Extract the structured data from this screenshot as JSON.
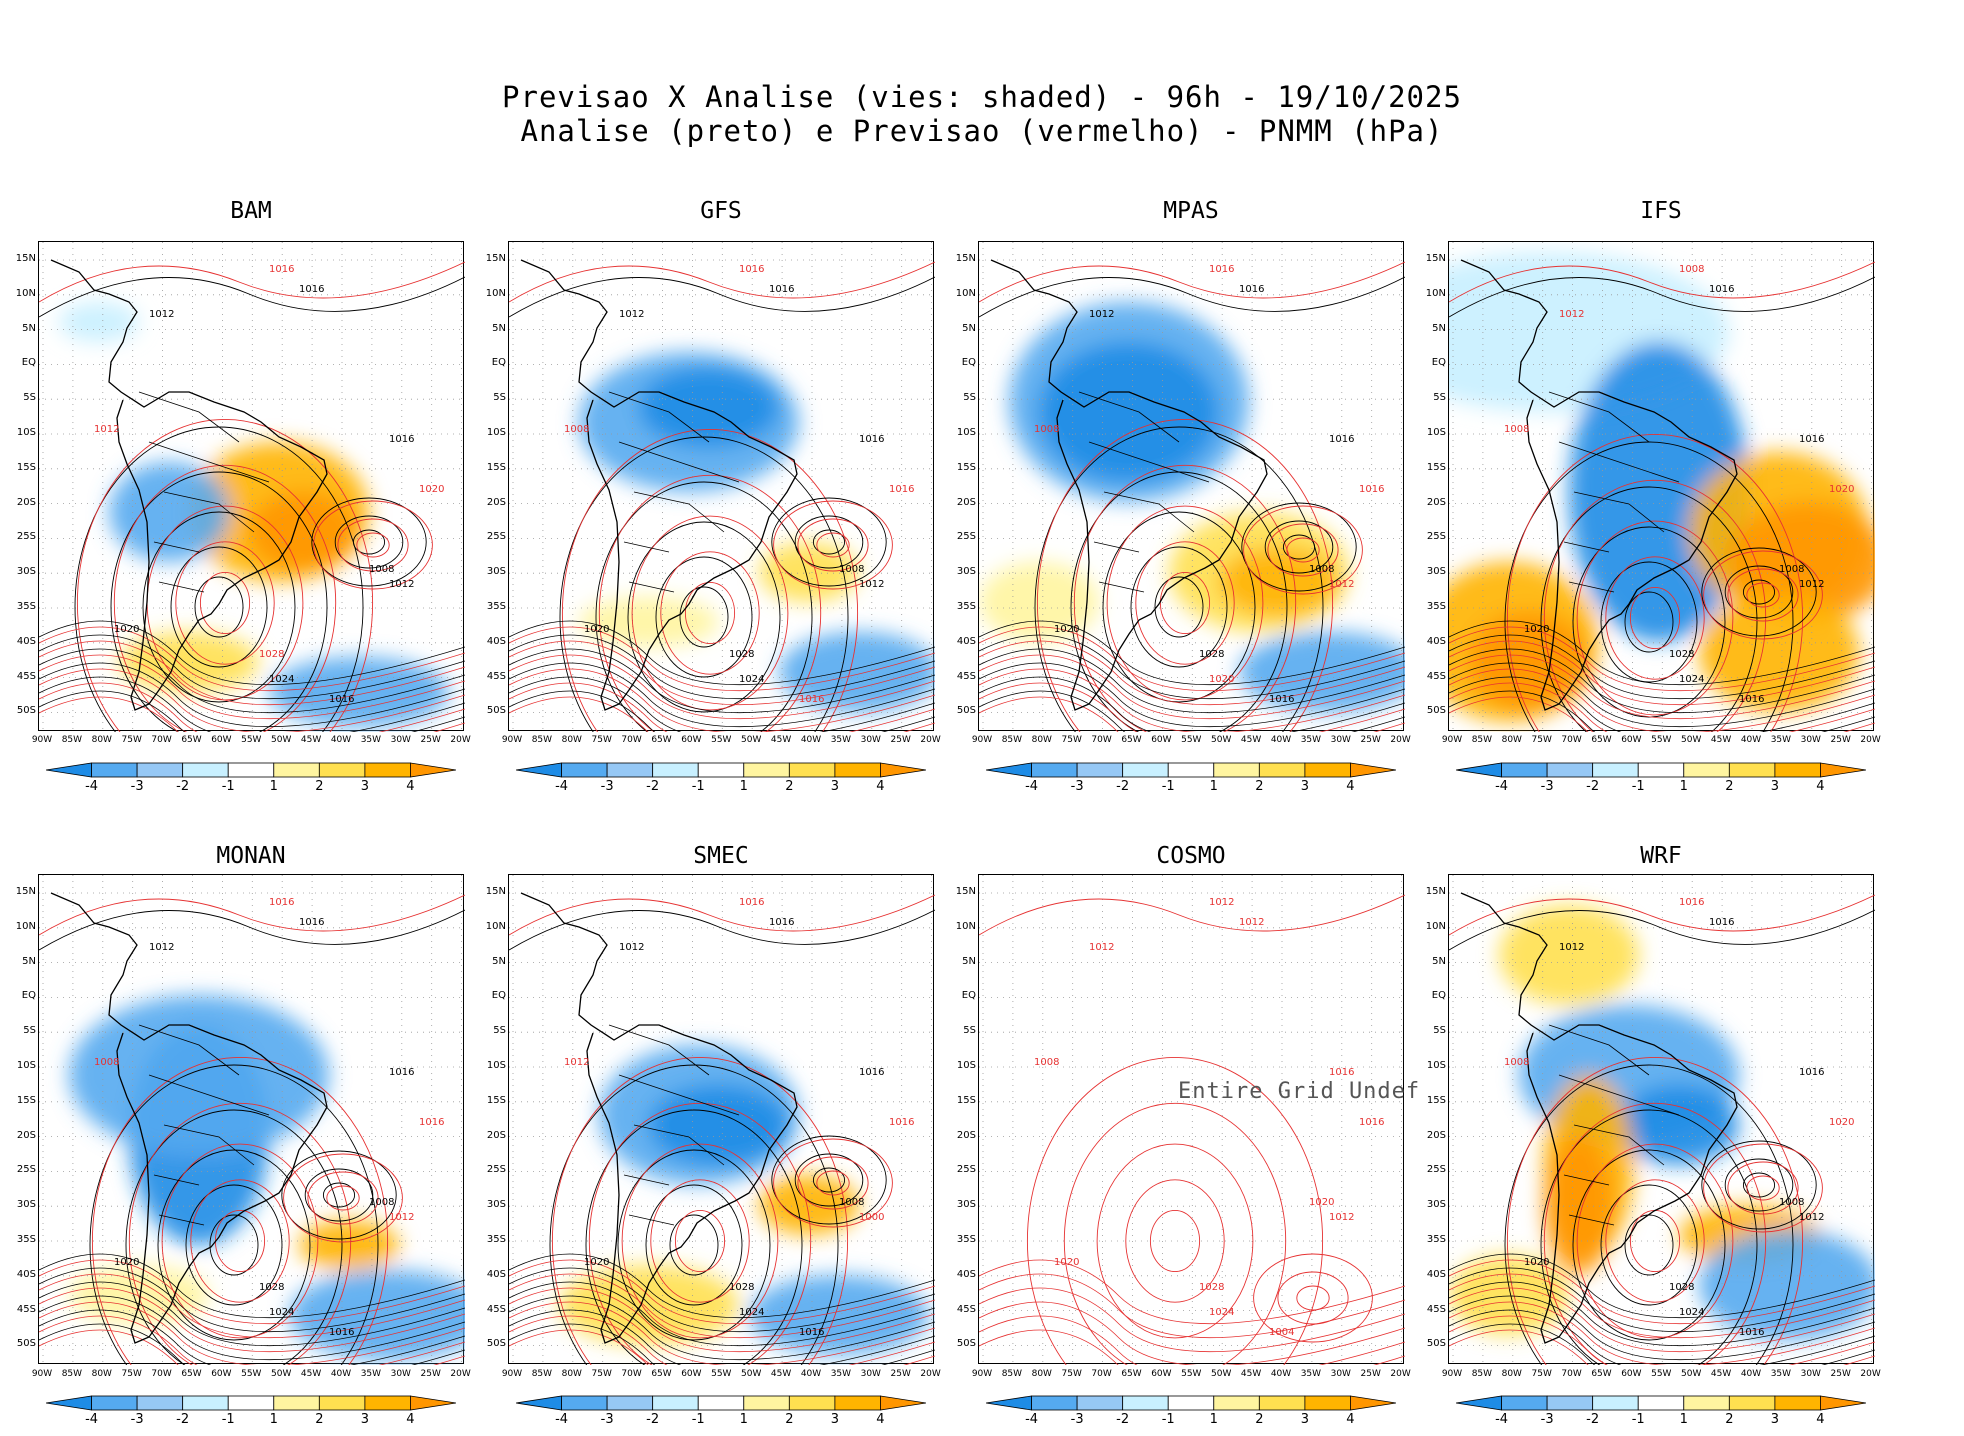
{
  "header": {
    "line1": "Previsao X Analise (vies: shaded) - 96h - 19/10/2025",
    "line2": "Analise (preto) e Previsao (vermelho) - PNMM (hPa)"
  },
  "lat_labels": [
    "15N",
    "10N",
    "5N",
    "EQ",
    "5S",
    "10S",
    "15S",
    "20S",
    "25S",
    "30S",
    "35S",
    "40S",
    "45S",
    "50S"
  ],
  "lon_labels": [
    "90W",
    "85W",
    "80W",
    "75W",
    "70W",
    "65W",
    "60W",
    "55W",
    "50W",
    "45W",
    "40W",
    "35W",
    "30W",
    "25W",
    "20W"
  ],
  "colorbar": {
    "ticks": [
      "-4",
      "-3",
      "-2",
      "-1",
      "1",
      "2",
      "3",
      "4"
    ],
    "colors": [
      "#1e8ce6",
      "#55aaf0",
      "#96c8f5",
      "#c8f0ff",
      "#ffffff",
      "#fff5a0",
      "#ffe050",
      "#ffb400",
      "#ff9600"
    ]
  },
  "colors": {
    "analysis": "#000000",
    "forecast": "#e63232",
    "positive": "#ffb400",
    "negative": "#55aaf0"
  },
  "panels": [
    {
      "name": "BAM",
      "has_data": true,
      "undef_text": "",
      "labels": [
        {
          "t": "1016",
          "c": "r"
        },
        {
          "t": "1016",
          "c": "k"
        },
        {
          "t": "1012",
          "c": "k"
        },
        {
          "t": "1012",
          "c": "r"
        },
        {
          "t": "1016",
          "c": "k"
        },
        {
          "t": "1020",
          "c": "r"
        },
        {
          "t": "1008",
          "c": "k"
        },
        {
          "t": "1012",
          "c": "k"
        },
        {
          "t": "1020",
          "c": "k"
        },
        {
          "t": "1024",
          "c": "k"
        },
        {
          "t": "1028",
          "c": "r"
        },
        {
          "t": "1016",
          "c": "k"
        }
      ]
    },
    {
      "name": "GFS",
      "has_data": true,
      "undef_text": "",
      "labels": [
        {
          "t": "1016",
          "c": "r"
        },
        {
          "t": "1016",
          "c": "k"
        },
        {
          "t": "1012",
          "c": "k"
        },
        {
          "t": "1008",
          "c": "r"
        },
        {
          "t": "1016",
          "c": "k"
        },
        {
          "t": "1016",
          "c": "r"
        },
        {
          "t": "1008",
          "c": "k"
        },
        {
          "t": "1012",
          "c": "k"
        },
        {
          "t": "1020",
          "c": "k"
        },
        {
          "t": "1024",
          "c": "k"
        },
        {
          "t": "1028",
          "c": "k"
        },
        {
          "t": "1016",
          "c": "r"
        }
      ]
    },
    {
      "name": "MPAS",
      "has_data": true,
      "undef_text": "",
      "labels": [
        {
          "t": "1016",
          "c": "r"
        },
        {
          "t": "1016",
          "c": "k"
        },
        {
          "t": "1012",
          "c": "k"
        },
        {
          "t": "1008",
          "c": "r"
        },
        {
          "t": "1016",
          "c": "k"
        },
        {
          "t": "1016",
          "c": "r"
        },
        {
          "t": "1008",
          "c": "k"
        },
        {
          "t": "1012",
          "c": "r"
        },
        {
          "t": "1020",
          "c": "k"
        },
        {
          "t": "1020",
          "c": "r"
        },
        {
          "t": "1028",
          "c": "k"
        },
        {
          "t": "1016",
          "c": "k"
        }
      ]
    },
    {
      "name": "IFS",
      "has_data": true,
      "undef_text": "",
      "labels": [
        {
          "t": "1008",
          "c": "r"
        },
        {
          "t": "1016",
          "c": "k"
        },
        {
          "t": "1012",
          "c": "r"
        },
        {
          "t": "1008",
          "c": "r"
        },
        {
          "t": "1016",
          "c": "k"
        },
        {
          "t": "1020",
          "c": "r"
        },
        {
          "t": "1008",
          "c": "k"
        },
        {
          "t": "1012",
          "c": "k"
        },
        {
          "t": "1020",
          "c": "k"
        },
        {
          "t": "1024",
          "c": "k"
        },
        {
          "t": "1028",
          "c": "k"
        },
        {
          "t": "1016",
          "c": "k"
        }
      ]
    },
    {
      "name": "MONAN",
      "has_data": true,
      "undef_text": "",
      "labels": [
        {
          "t": "1016",
          "c": "r"
        },
        {
          "t": "1016",
          "c": "k"
        },
        {
          "t": "1012",
          "c": "k"
        },
        {
          "t": "1008",
          "c": "r"
        },
        {
          "t": "1016",
          "c": "k"
        },
        {
          "t": "1016",
          "c": "r"
        },
        {
          "t": "1008",
          "c": "k"
        },
        {
          "t": "1012",
          "c": "r"
        },
        {
          "t": "1020",
          "c": "k"
        },
        {
          "t": "1024",
          "c": "k"
        },
        {
          "t": "1028",
          "c": "k"
        },
        {
          "t": "1016",
          "c": "k"
        }
      ]
    },
    {
      "name": "SMEC",
      "has_data": true,
      "undef_text": "",
      "labels": [
        {
          "t": "1016",
          "c": "r"
        },
        {
          "t": "1016",
          "c": "k"
        },
        {
          "t": "1012",
          "c": "k"
        },
        {
          "t": "1012",
          "c": "r"
        },
        {
          "t": "1016",
          "c": "k"
        },
        {
          "t": "1016",
          "c": "r"
        },
        {
          "t": "1008",
          "c": "k"
        },
        {
          "t": "1000",
          "c": "r"
        },
        {
          "t": "1020",
          "c": "k"
        },
        {
          "t": "1024",
          "c": "k"
        },
        {
          "t": "1028",
          "c": "k"
        },
        {
          "t": "1016",
          "c": "k"
        }
      ]
    },
    {
      "name": "COSMO",
      "has_data": false,
      "undef_text": "Entire Grid Undef",
      "labels": [
        {
          "t": "1012",
          "c": "r"
        },
        {
          "t": "1012",
          "c": "r"
        },
        {
          "t": "1012",
          "c": "r"
        },
        {
          "t": "1008",
          "c": "r"
        },
        {
          "t": "1016",
          "c": "r"
        },
        {
          "t": "1016",
          "c": "r"
        },
        {
          "t": "1020",
          "c": "r"
        },
        {
          "t": "1012",
          "c": "r"
        },
        {
          "t": "1020",
          "c": "r"
        },
        {
          "t": "1024",
          "c": "r"
        },
        {
          "t": "1028",
          "c": "r"
        },
        {
          "t": "1004",
          "c": "r"
        }
      ]
    },
    {
      "name": "WRF",
      "has_data": true,
      "undef_text": "",
      "labels": [
        {
          "t": "1016",
          "c": "r"
        },
        {
          "t": "1016",
          "c": "k"
        },
        {
          "t": "1012",
          "c": "k"
        },
        {
          "t": "1008",
          "c": "r"
        },
        {
          "t": "1016",
          "c": "k"
        },
        {
          "t": "1020",
          "c": "r"
        },
        {
          "t": "1008",
          "c": "k"
        },
        {
          "t": "1012",
          "c": "k"
        },
        {
          "t": "1020",
          "c": "k"
        },
        {
          "t": "1024",
          "c": "k"
        },
        {
          "t": "1028",
          "c": "k"
        },
        {
          "t": "1016",
          "c": "k"
        }
      ]
    }
  ]
}
